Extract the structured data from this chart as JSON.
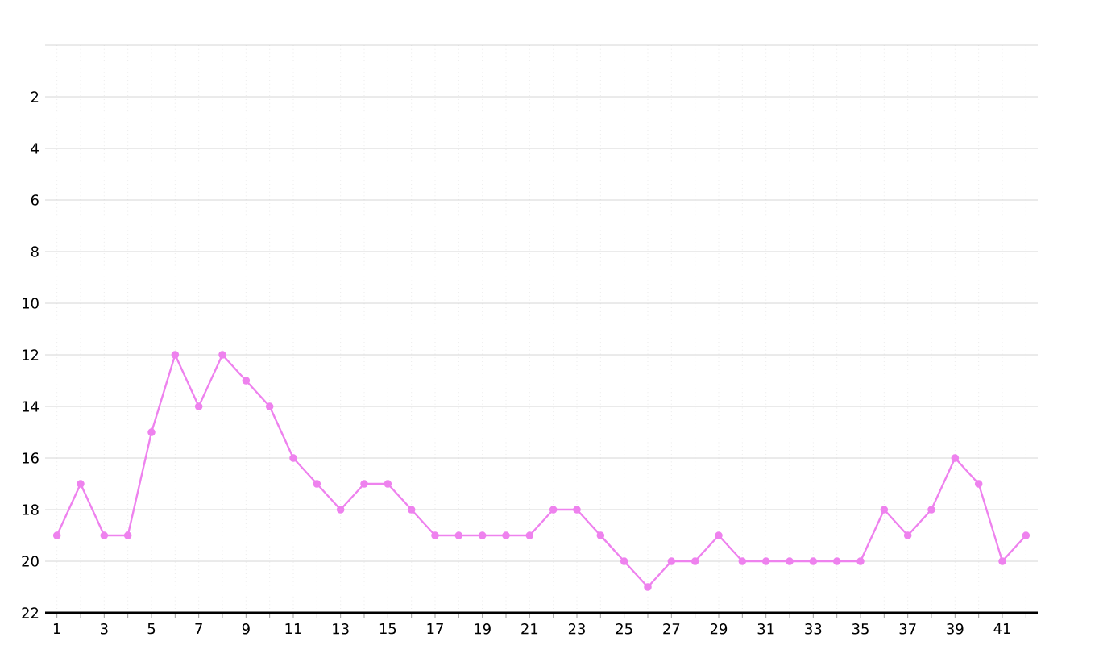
{
  "chart_data": {
    "type": "line",
    "x": [
      1,
      2,
      3,
      4,
      5,
      6,
      7,
      8,
      9,
      10,
      11,
      12,
      13,
      14,
      15,
      16,
      17,
      18,
      19,
      20,
      21,
      22,
      23,
      24,
      25,
      26,
      27,
      28,
      29,
      30,
      31,
      32,
      33,
      34,
      35,
      36,
      37,
      38,
      39,
      40,
      41,
      42
    ],
    "series": [
      {
        "color": "#ee82ee",
        "values": [
          19,
          17,
          19,
          19,
          15,
          12,
          14,
          12,
          13,
          14,
          16,
          17,
          18,
          17,
          17,
          18,
          19,
          19,
          19,
          19,
          19,
          18,
          18,
          19,
          20,
          21,
          20,
          20,
          19,
          20,
          20,
          20,
          20,
          20,
          20,
          18,
          19,
          18,
          16,
          17,
          20,
          19
        ]
      }
    ],
    "xlim": [
      0.5,
      42.5
    ],
    "ylim": [
      22,
      0
    ],
    "xticks": [
      1,
      {
        "value": 2,
        "label": null
      },
      3,
      {
        "value": 4,
        "label": null
      },
      5,
      {
        "value": 6,
        "label": null
      },
      7,
      {
        "value": 8,
        "label": null
      },
      9,
      {
        "value": 10,
        "label": null
      },
      11,
      {
        "value": 12,
        "label": null
      },
      13,
      {
        "value": 14,
        "label": null
      },
      15,
      {
        "value": 16,
        "label": null
      },
      17,
      {
        "value": 18,
        "label": null
      },
      19,
      {
        "value": 20,
        "label": null
      },
      21,
      {
        "value": 22,
        "label": null
      },
      23,
      {
        "value": 24,
        "label": null
      },
      25,
      {
        "value": 26,
        "label": null
      },
      27,
      {
        "value": 28,
        "label": null
      },
      29,
      {
        "value": 30,
        "label": null
      },
      31,
      {
        "value": 32,
        "label": null
      },
      33,
      {
        "value": 34,
        "label": null
      },
      35,
      {
        "value": 36,
        "label": null
      },
      37,
      {
        "value": 38,
        "label": null
      },
      39,
      {
        "value": 40,
        "label": null
      },
      41,
      {
        "value": 42,
        "label": null
      }
    ],
    "yticks": [
      {
        "value": 0,
        "label": null
      },
      2,
      4,
      6,
      8,
      10,
      12,
      14,
      16,
      18,
      20,
      22
    ],
    "grid": true,
    "marker": "circle",
    "line_style": "solid"
  }
}
